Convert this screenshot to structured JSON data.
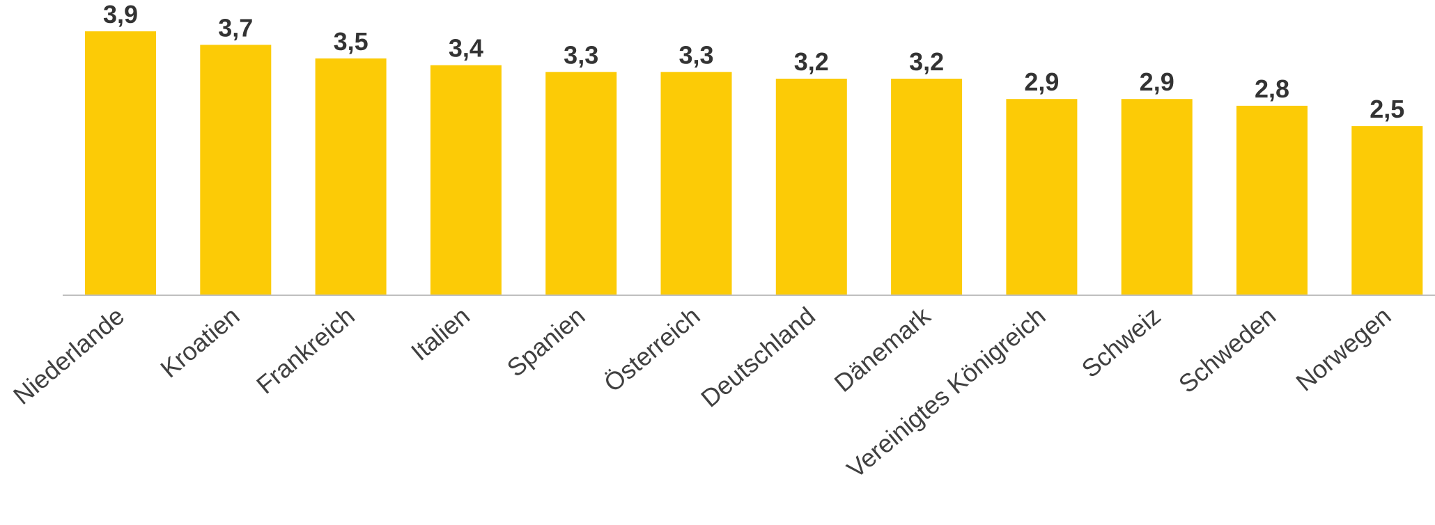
{
  "chart_data": {
    "type": "bar",
    "categories": [
      "Niederlande",
      "Kroatien",
      "Frankreich",
      "Italien",
      "Spanien",
      "Österreich",
      "Deutschland",
      "Dänemark",
      "Vereinigtes Königreich",
      "Schweiz",
      "Schweden",
      "Norwegen"
    ],
    "values": [
      3.9,
      3.7,
      3.5,
      3.4,
      3.3,
      3.3,
      3.2,
      3.2,
      2.9,
      2.9,
      2.8,
      2.5
    ],
    "value_labels": [
      "3,9",
      "3,7",
      "3,5",
      "3,4",
      "3,3",
      "3,3",
      "3,2",
      "3,2",
      "2,9",
      "2,9",
      "2,8",
      "2,5"
    ],
    "title": "",
    "xlabel": "",
    "ylabel": "",
    "ylim": [
      0,
      4.3
    ],
    "grid": false,
    "legend": "none",
    "colors": {
      "bar": "#FCCB06",
      "axis": "#BFBFBF",
      "value_text": "#333333",
      "category_text": "#404040"
    }
  }
}
